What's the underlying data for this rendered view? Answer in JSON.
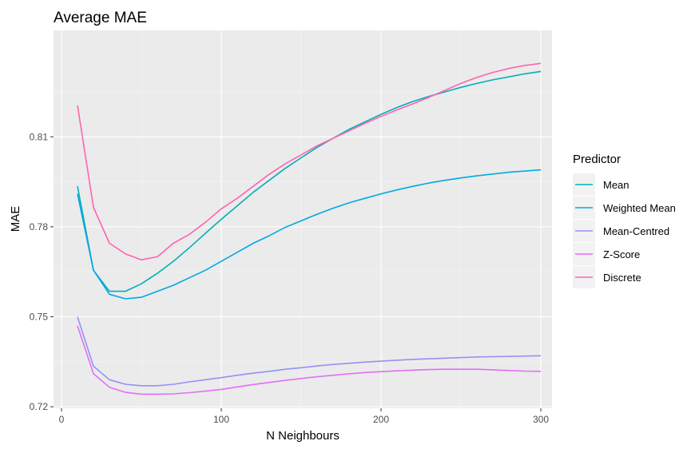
{
  "chart_data": {
    "type": "line",
    "title": "Average MAE",
    "xlabel": "N Neighbours",
    "ylabel": "MAE",
    "xlim": [
      -5,
      307
    ],
    "ylim": [
      0.7195,
      0.8455
    ],
    "x_ticks": [
      0,
      100,
      200,
      300
    ],
    "x_tick_labels": [
      "0",
      "100",
      "200",
      "300"
    ],
    "y_ticks": [
      0.72,
      0.75,
      0.78,
      0.81
    ],
    "y_tick_labels": [
      "0.72",
      "0.75",
      "0.78",
      "0.81"
    ],
    "grid": true,
    "legend_title": "Predictor",
    "legend_position": "right",
    "x": [
      10,
      20,
      30,
      40,
      50,
      60,
      70,
      80,
      90,
      100,
      110,
      120,
      130,
      140,
      150,
      160,
      170,
      180,
      190,
      200,
      210,
      220,
      230,
      240,
      250,
      260,
      270,
      280,
      290,
      300
    ],
    "series": [
      {
        "name": "Mean",
        "color": "#00B0B9",
        "values": [
          0.7935,
          0.7655,
          0.7585,
          0.7585,
          0.761,
          0.7645,
          0.7685,
          0.773,
          0.7778,
          0.7825,
          0.787,
          0.7915,
          0.7955,
          0.7995,
          0.803,
          0.8065,
          0.8095,
          0.8125,
          0.815,
          0.8175,
          0.8198,
          0.8218,
          0.8235,
          0.825,
          0.8265,
          0.8278,
          0.829,
          0.83,
          0.831,
          0.8318
        ]
      },
      {
        "name": "Weighted Mean",
        "color": "#00A9E4",
        "values": [
          0.791,
          0.7655,
          0.7575,
          0.756,
          0.7565,
          0.7585,
          0.7605,
          0.763,
          0.7655,
          0.7685,
          0.7715,
          0.7745,
          0.777,
          0.7798,
          0.782,
          0.7842,
          0.7862,
          0.788,
          0.7895,
          0.791,
          0.7923,
          0.7935,
          0.7946,
          0.7955,
          0.7963,
          0.797,
          0.7976,
          0.7982,
          0.7986,
          0.799
        ]
      },
      {
        "name": "Mean-Centred",
        "color": "#9591F5",
        "values": [
          0.75,
          0.7335,
          0.729,
          0.7275,
          0.727,
          0.727,
          0.7275,
          0.7283,
          0.729,
          0.7297,
          0.7305,
          0.7312,
          0.7318,
          0.7325,
          0.733,
          0.7336,
          0.7341,
          0.7345,
          0.7349,
          0.7352,
          0.7355,
          0.7358,
          0.736,
          0.7362,
          0.7364,
          0.7366,
          0.7367,
          0.7368,
          0.7369,
          0.737
        ]
      },
      {
        "name": "Z-Score",
        "color": "#E36EF6",
        "values": [
          0.747,
          0.731,
          0.7265,
          0.7248,
          0.7242,
          0.7242,
          0.7243,
          0.7247,
          0.7252,
          0.7258,
          0.7266,
          0.7274,
          0.7281,
          0.7288,
          0.7294,
          0.73,
          0.7305,
          0.731,
          0.7314,
          0.7317,
          0.732,
          0.7322,
          0.7324,
          0.7325,
          0.7325,
          0.7325,
          0.7323,
          0.7321,
          0.7319,
          0.7318
        ]
      },
      {
        "name": "Discrete",
        "color": "#FF64B0",
        "values": [
          0.8205,
          0.7865,
          0.7745,
          0.771,
          0.769,
          0.77,
          0.7745,
          0.7775,
          0.7815,
          0.786,
          0.7895,
          0.7935,
          0.7975,
          0.801,
          0.804,
          0.807,
          0.8095,
          0.812,
          0.8145,
          0.8168,
          0.819,
          0.821,
          0.8232,
          0.8255,
          0.8278,
          0.8298,
          0.8315,
          0.8328,
          0.8338,
          0.8345
        ]
      }
    ]
  }
}
